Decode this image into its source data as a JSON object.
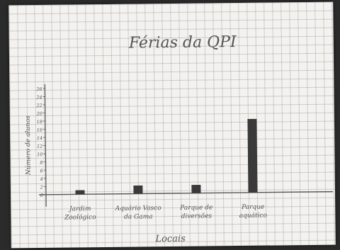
{
  "chart_data": {
    "type": "bar",
    "title": "Férias da QPI",
    "xlabel": "Locais",
    "ylabel": "Número de alunos",
    "categories": [
      "Jardim Zoológico",
      "Aquário Vasco da Gama",
      "Parque de diversões",
      "Parque aquático"
    ],
    "category_label_lines": [
      [
        "Jardim",
        "Zoológico"
      ],
      [
        "Aquário Vasco",
        "da Gama"
      ],
      [
        "Parque de",
        "diversões"
      ],
      [
        "Parque",
        "aquático"
      ]
    ],
    "values": [
      1,
      2,
      2,
      18
    ],
    "ylim": [
      0,
      26
    ],
    "yticks": [
      0,
      2,
      4,
      6,
      8,
      10,
      12,
      14,
      16,
      18,
      20,
      22,
      24,
      26
    ],
    "grid": true,
    "bar_color": "#3a3a3a",
    "ink_color": "#555555"
  }
}
